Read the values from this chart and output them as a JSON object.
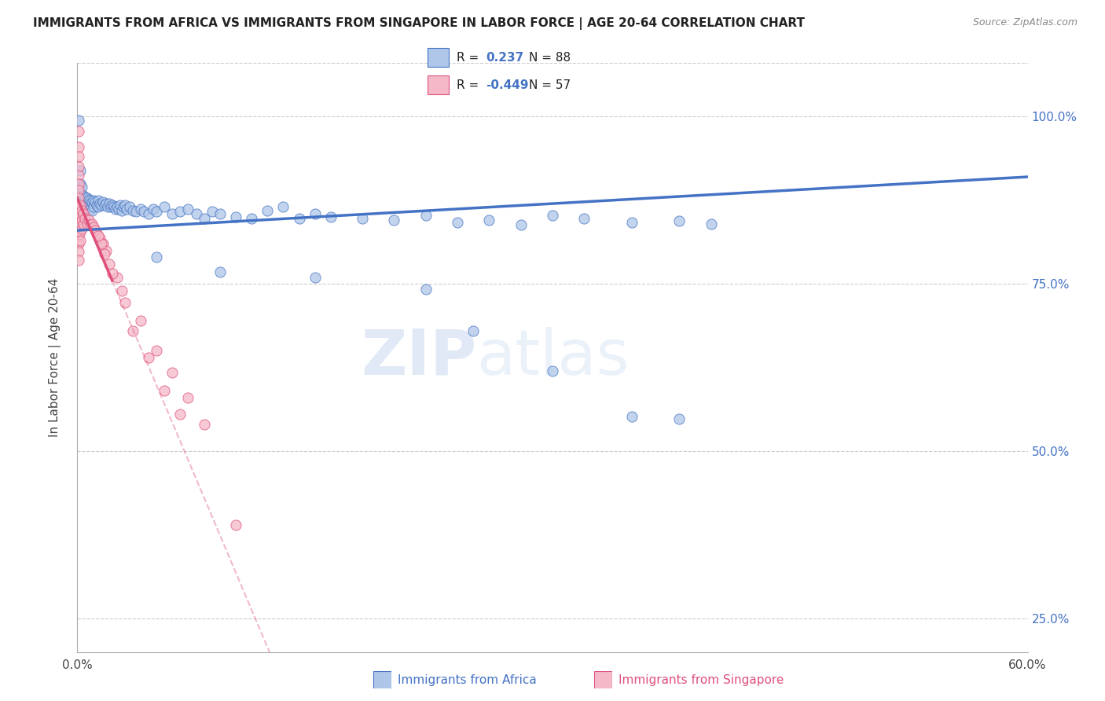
{
  "title": "IMMIGRANTS FROM AFRICA VS IMMIGRANTS FROM SINGAPORE IN LABOR FORCE | AGE 20-64 CORRELATION CHART",
  "source": "Source: ZipAtlas.com",
  "ylabel": "In Labor Force | Age 20-64",
  "xlim": [
    0.0,
    0.6
  ],
  "ylim": [
    0.2,
    1.08
  ],
  "x_ticks": [
    0.0,
    0.1,
    0.2,
    0.3,
    0.4,
    0.5,
    0.6
  ],
  "x_tick_labels": [
    "0.0%",
    "",
    "",
    "",
    "",
    "",
    "60.0%"
  ],
  "y_ticks_right": [
    0.25,
    0.5,
    0.75,
    1.0
  ],
  "y_tick_labels_right": [
    "25.0%",
    "50.0%",
    "75.0%",
    "100.0%"
  ],
  "africa_color": "#aec6e8",
  "singapore_color": "#f4b8c8",
  "africa_line_color": "#4472c4",
  "singapore_line_color": "#e0507a",
  "background_color": "#ffffff",
  "grid_color": "#cccccc",
  "watermark_zip": "ZIP",
  "watermark_atlas": "atlas",
  "africa_dots": [
    [
      0.001,
      0.995
    ],
    [
      0.002,
      0.92
    ],
    [
      0.002,
      0.9
    ],
    [
      0.002,
      0.885
    ],
    [
      0.002,
      0.87
    ],
    [
      0.003,
      0.895
    ],
    [
      0.003,
      0.878
    ],
    [
      0.003,
      0.87
    ],
    [
      0.004,
      0.882
    ],
    [
      0.004,
      0.87
    ],
    [
      0.004,
      0.858
    ],
    [
      0.005,
      0.88
    ],
    [
      0.005,
      0.872
    ],
    [
      0.005,
      0.865
    ],
    [
      0.006,
      0.878
    ],
    [
      0.006,
      0.868
    ],
    [
      0.007,
      0.876
    ],
    [
      0.007,
      0.865
    ],
    [
      0.008,
      0.875
    ],
    [
      0.008,
      0.862
    ],
    [
      0.009,
      0.872
    ],
    [
      0.009,
      0.86
    ],
    [
      0.01,
      0.875
    ],
    [
      0.01,
      0.865
    ],
    [
      0.011,
      0.872
    ],
    [
      0.012,
      0.868
    ],
    [
      0.013,
      0.875
    ],
    [
      0.013,
      0.865
    ],
    [
      0.014,
      0.87
    ],
    [
      0.015,
      0.868
    ],
    [
      0.016,
      0.872
    ],
    [
      0.017,
      0.868
    ],
    [
      0.018,
      0.87
    ],
    [
      0.019,
      0.865
    ],
    [
      0.02,
      0.87
    ],
    [
      0.021,
      0.865
    ],
    [
      0.022,
      0.868
    ],
    [
      0.023,
      0.865
    ],
    [
      0.024,
      0.862
    ],
    [
      0.025,
      0.865
    ],
    [
      0.026,
      0.862
    ],
    [
      0.027,
      0.868
    ],
    [
      0.028,
      0.86
    ],
    [
      0.029,
      0.865
    ],
    [
      0.03,
      0.868
    ],
    [
      0.031,
      0.862
    ],
    [
      0.033,
      0.865
    ],
    [
      0.035,
      0.86
    ],
    [
      0.037,
      0.858
    ],
    [
      0.04,
      0.862
    ],
    [
      0.042,
      0.858
    ],
    [
      0.045,
      0.855
    ],
    [
      0.048,
      0.862
    ],
    [
      0.05,
      0.858
    ],
    [
      0.055,
      0.865
    ],
    [
      0.06,
      0.855
    ],
    [
      0.065,
      0.858
    ],
    [
      0.07,
      0.862
    ],
    [
      0.075,
      0.855
    ],
    [
      0.08,
      0.848
    ],
    [
      0.085,
      0.858
    ],
    [
      0.09,
      0.855
    ],
    [
      0.1,
      0.85
    ],
    [
      0.11,
      0.848
    ],
    [
      0.12,
      0.86
    ],
    [
      0.13,
      0.865
    ],
    [
      0.14,
      0.848
    ],
    [
      0.15,
      0.855
    ],
    [
      0.16,
      0.85
    ],
    [
      0.18,
      0.848
    ],
    [
      0.2,
      0.845
    ],
    [
      0.22,
      0.852
    ],
    [
      0.24,
      0.842
    ],
    [
      0.26,
      0.845
    ],
    [
      0.28,
      0.838
    ],
    [
      0.3,
      0.852
    ],
    [
      0.32,
      0.848
    ],
    [
      0.35,
      0.842
    ],
    [
      0.38,
      0.844
    ],
    [
      0.4,
      0.84
    ],
    [
      0.05,
      0.79
    ],
    [
      0.09,
      0.768
    ],
    [
      0.15,
      0.76
    ],
    [
      0.22,
      0.742
    ],
    [
      0.25,
      0.68
    ],
    [
      0.3,
      0.62
    ],
    [
      0.35,
      0.552
    ],
    [
      0.38,
      0.548
    ]
  ],
  "singapore_dots": [
    [
      0.001,
      0.978
    ],
    [
      0.001,
      0.955
    ],
    [
      0.001,
      0.94
    ],
    [
      0.001,
      0.925
    ],
    [
      0.001,
      0.912
    ],
    [
      0.001,
      0.9
    ],
    [
      0.001,
      0.89
    ],
    [
      0.001,
      0.878
    ],
    [
      0.001,
      0.865
    ],
    [
      0.001,
      0.855
    ],
    [
      0.001,
      0.845
    ],
    [
      0.001,
      0.835
    ],
    [
      0.001,
      0.822
    ],
    [
      0.001,
      0.81
    ],
    [
      0.001,
      0.798
    ],
    [
      0.001,
      0.785
    ],
    [
      0.002,
      0.868
    ],
    [
      0.002,
      0.855
    ],
    [
      0.002,
      0.84
    ],
    [
      0.002,
      0.828
    ],
    [
      0.002,
      0.815
    ],
    [
      0.003,
      0.86
    ],
    [
      0.003,
      0.845
    ],
    [
      0.003,
      0.832
    ],
    [
      0.004,
      0.855
    ],
    [
      0.004,
      0.84
    ],
    [
      0.005,
      0.848
    ],
    [
      0.006,
      0.84
    ],
    [
      0.007,
      0.845
    ],
    [
      0.008,
      0.838
    ],
    [
      0.009,
      0.84
    ],
    [
      0.01,
      0.835
    ],
    [
      0.011,
      0.83
    ],
    [
      0.012,
      0.825
    ],
    [
      0.014,
      0.818
    ],
    [
      0.016,
      0.81
    ],
    [
      0.018,
      0.8
    ],
    [
      0.025,
      0.76
    ],
    [
      0.03,
      0.722
    ],
    [
      0.035,
      0.68
    ],
    [
      0.045,
      0.64
    ],
    [
      0.055,
      0.59
    ],
    [
      0.065,
      0.555
    ],
    [
      0.02,
      0.78
    ],
    [
      0.022,
      0.765
    ],
    [
      0.028,
      0.74
    ],
    [
      0.04,
      0.695
    ],
    [
      0.05,
      0.65
    ],
    [
      0.06,
      0.618
    ],
    [
      0.07,
      0.58
    ],
    [
      0.08,
      0.54
    ],
    [
      0.015,
      0.81
    ],
    [
      0.017,
      0.795
    ],
    [
      0.013,
      0.822
    ],
    [
      0.1,
      0.39
    ]
  ]
}
